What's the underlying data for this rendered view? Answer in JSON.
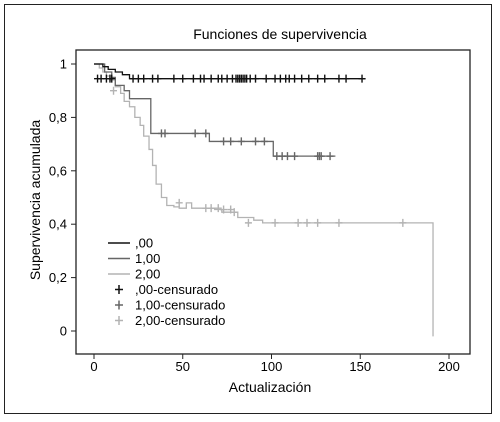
{
  "chart_data": {
    "type": "line",
    "subtype": "step",
    "title": "Funciones de supervivencia",
    "xlabel": "Actualización",
    "ylabel": "Supervivencia acumulada",
    "xlim": [
      0,
      200
    ],
    "ylim": [
      0,
      1
    ],
    "xticks": [
      "0",
      "50",
      "100",
      "150",
      "200"
    ],
    "yticks": [
      "0",
      "0,2",
      "0,4",
      "0,6",
      "0,8",
      "1"
    ],
    "grid": false,
    "legend_position": "bottom-left",
    "series": [
      {
        "name": ",00",
        "color": "#111111",
        "x": [
          0,
          5,
          8,
          12,
          16,
          20,
          153
        ],
        "y": [
          1.0,
          0.99,
          0.98,
          0.97,
          0.96,
          0.945,
          0.945
        ],
        "censored_name": ",00-censurado",
        "censored_x": [
          2,
          4,
          7,
          9,
          10,
          22,
          25,
          28,
          33,
          36,
          45,
          50,
          56,
          60,
          62,
          66,
          70,
          72,
          75,
          78,
          80,
          81,
          82,
          83,
          84,
          85,
          86,
          88,
          91,
          97,
          102,
          105,
          108,
          110,
          113,
          117,
          121,
          126,
          130,
          138,
          142,
          151
        ],
        "censored_y": 0.945
      },
      {
        "name": "1,00",
        "color": "#666666",
        "x": [
          0,
          6,
          10,
          12,
          17,
          20,
          32,
          45,
          65,
          101,
          136
        ],
        "y": [
          1.0,
          0.97,
          0.95,
          0.92,
          0.9,
          0.87,
          0.74,
          0.74,
          0.71,
          0.655,
          0.655
        ],
        "censored_name": "1,00-censurado",
        "censored_x": [
          38,
          40,
          57,
          63,
          73,
          77,
          83,
          91,
          96,
          103,
          106,
          109,
          113,
          126,
          127,
          128,
          133
        ],
        "censored_y": [
          0.74,
          0.74,
          0.74,
          0.74,
          0.71,
          0.71,
          0.71,
          0.71,
          0.71,
          0.655,
          0.655,
          0.655,
          0.655,
          0.655,
          0.655,
          0.655,
          0.655
        ]
      },
      {
        "name": "2,00",
        "color": "#b3b3b3",
        "x": [
          0,
          3,
          5,
          7,
          9,
          12,
          15,
          17,
          20,
          23,
          26,
          28,
          31,
          33,
          35,
          38,
          41,
          45,
          48,
          52,
          55,
          68,
          72,
          81,
          90,
          95,
          191
        ],
        "y": [
          1.0,
          0.985,
          0.97,
          0.955,
          0.94,
          0.915,
          0.89,
          0.86,
          0.84,
          0.8,
          0.77,
          0.73,
          0.68,
          0.62,
          0.55,
          0.5,
          0.47,
          0.465,
          0.46,
          0.48,
          0.46,
          0.455,
          0.445,
          0.425,
          0.415,
          0.405,
          0.405
        ],
        "drop_to_zero_at": 191,
        "censored_name": "2,00-censurado",
        "censored_x": [
          11,
          48,
          63,
          66,
          70,
          73,
          77,
          79,
          87,
          102,
          115,
          120,
          126,
          138,
          174
        ],
        "censored_y": [
          0.9,
          0.48,
          0.46,
          0.46,
          0.46,
          0.455,
          0.455,
          0.445,
          0.405,
          0.405,
          0.405,
          0.405,
          0.405,
          0.405,
          0.405
        ]
      }
    ]
  }
}
